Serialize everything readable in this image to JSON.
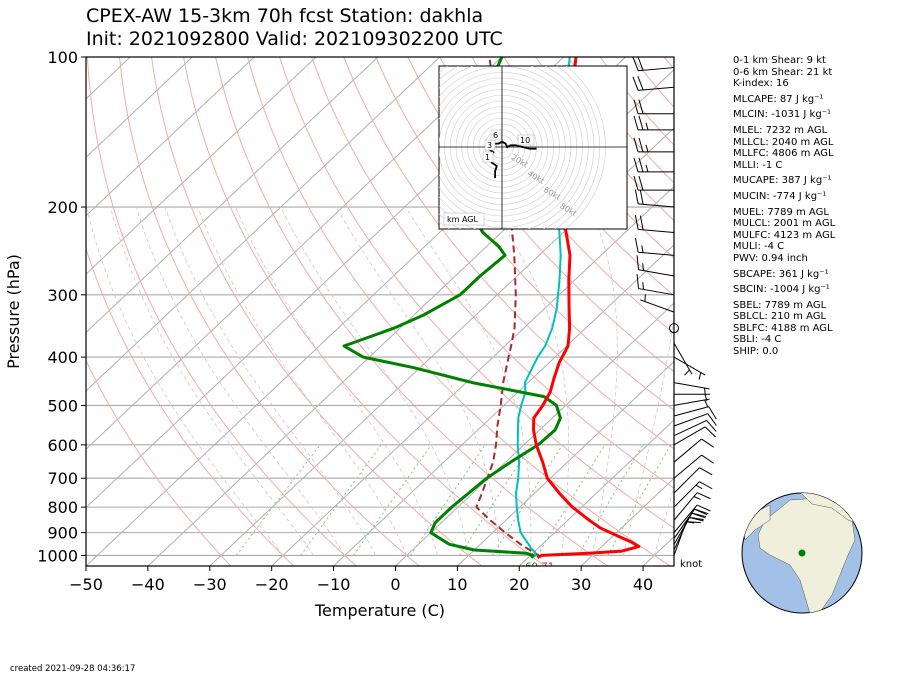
{
  "title_line1": "CPEX-AW 15-3km  70h fcst  Station: dakhla",
  "title_line2": "Init: 2021092800  Valid: 202109302200 UTC",
  "footer": "created 2021-09-28 04:36:17",
  "barb_unit": "knot",
  "stats": [
    {
      "text": "0-1 km Shear: 9 kt"
    },
    {
      "text": "0-6 km Shear: 21 kt"
    },
    {
      "text": "K-index: 16"
    },
    {
      "text": "MLCAPE: 87 J kg⁻¹",
      "gap": true
    },
    {
      "text": "MLCIN: -1031 J kg⁻¹",
      "gap": true
    },
    {
      "text": "MLEL: 7232 m AGL",
      "gap": true
    },
    {
      "text": "MLLCL: 2040 m AGL"
    },
    {
      "text": "MLLFC: 4806 m AGL"
    },
    {
      "text": "MLLI: -1 C"
    },
    {
      "text": "MUCAPE: 387 J kg⁻¹",
      "gap": true
    },
    {
      "text": "MUCIN: -774 J kg⁻¹",
      "gap": true
    },
    {
      "text": "MUEL: 7789 m AGL",
      "gap": true
    },
    {
      "text": "MULCL: 2001 m AGL"
    },
    {
      "text": "MULFC: 4123 m AGL"
    },
    {
      "text": "MULI: -4 C"
    },
    {
      "text": "PWV: 0.94 inch"
    },
    {
      "text": "SBCAPE: 361 J kg⁻¹",
      "gap": true
    },
    {
      "text": "SBCIN: -1004 J kg⁻¹",
      "gap": true
    },
    {
      "text": "SBEL: 7789 m AGL",
      "gap": true
    },
    {
      "text": "SBLCL: 210 m AGL"
    },
    {
      "text": "SBLFC: 4188 m AGL"
    },
    {
      "text": "SBLI: -4 C"
    },
    {
      "text": "SHIP: 0.0"
    }
  ],
  "colors": {
    "temperature": "#ff0000",
    "dewpoint": "#008000",
    "wetbulb": "#00bfbf",
    "parcel": "#a52a2a",
    "isotherm": "#b0b0b0",
    "dry_adiabat": "#f4aaaa",
    "moist_adiabat": "#c8c8c8",
    "mixing_ratio": "#7fc77f"
  },
  "chart_data": {
    "type": "skewt",
    "xlabel": "Temperature (C)",
    "ylabel": "Pressure (hPa)",
    "xlim": [
      -50,
      45
    ],
    "ylim": [
      1050,
      100
    ],
    "x_ticks": [
      "−50",
      "−40",
      "−30",
      "−20",
      "−10",
      "0",
      "10",
      "20",
      "30",
      "40"
    ],
    "x_tick_values": [
      -50,
      -40,
      -30,
      -20,
      -10,
      0,
      10,
      20,
      30,
      40
    ],
    "y_ticks": [
      "100",
      "200",
      "300",
      "400",
      "500",
      "600",
      "700",
      "800",
      "900",
      "1000"
    ],
    "y_tick_values": [
      100,
      200,
      300,
      400,
      500,
      600,
      700,
      800,
      900,
      1000
    ],
    "sfc_labels": {
      "dewpoint": "69",
      "temperature": "71"
    },
    "series": [
      {
        "key": "temperature",
        "points": [
          [
            1010,
            21.5
          ],
          [
            1000,
            21.8
          ],
          [
            990,
            29
          ],
          [
            980,
            34
          ],
          [
            960,
            36
          ],
          [
            940,
            34
          ],
          [
            920,
            31.5
          ],
          [
            880,
            26.5
          ],
          [
            850,
            23.5
          ],
          [
            800,
            18.5
          ],
          [
            750,
            14
          ],
          [
            700,
            9.5
          ],
          [
            650,
            6
          ],
          [
            600,
            2
          ],
          [
            560,
            -1
          ],
          [
            530,
            -3
          ],
          [
            500,
            -3.7
          ],
          [
            470,
            -4.8
          ],
          [
            440,
            -6.6
          ],
          [
            410,
            -8.4
          ],
          [
            380,
            -9.8
          ],
          [
            350,
            -12.6
          ],
          [
            320,
            -16
          ],
          [
            280,
            -21
          ],
          [
            250,
            -25
          ],
          [
            220,
            -30.5
          ],
          [
            200,
            -34
          ],
          [
            180,
            -38
          ],
          [
            160,
            -42
          ],
          [
            140,
            -46.5
          ],
          [
            120,
            -52
          ],
          [
            100,
            -58
          ]
        ]
      },
      {
        "key": "dewpoint",
        "points": [
          [
            1010,
            20.5
          ],
          [
            1000,
            20.4
          ],
          [
            990,
            19
          ],
          [
            975,
            10
          ],
          [
            950,
            5
          ],
          [
            930,
            3
          ],
          [
            900,
            0
          ],
          [
            860,
            -1
          ],
          [
            800,
            -1
          ],
          [
            700,
            -0.3
          ],
          [
            650,
            0.8
          ],
          [
            600,
            2.3
          ],
          [
            560,
            2.5
          ],
          [
            530,
            1.3
          ],
          [
            500,
            -1.5
          ],
          [
            480,
            -5
          ],
          [
            450,
            -19
          ],
          [
            420,
            -31
          ],
          [
            400,
            -41
          ],
          [
            380,
            -46
          ],
          [
            350,
            -41
          ],
          [
            330,
            -38.5
          ],
          [
            300,
            -36
          ],
          [
            275,
            -36
          ],
          [
            250,
            -35.5
          ],
          [
            240,
            -38
          ],
          [
            225,
            -43
          ],
          [
            210,
            -47
          ],
          [
            200,
            -50
          ],
          [
            180,
            -56
          ],
          [
            160,
            -60
          ],
          [
            140,
            -63
          ],
          [
            120,
            -66
          ],
          [
            100,
            -70
          ]
        ]
      },
      {
        "key": "wetbulb",
        "points": [
          [
            1010,
            20.7
          ],
          [
            1000,
            20.8
          ],
          [
            985,
            20.2
          ],
          [
            970,
            19
          ],
          [
            950,
            17.8
          ],
          [
            900,
            14.5
          ],
          [
            850,
            12
          ],
          [
            800,
            9.5
          ],
          [
            750,
            7
          ],
          [
            700,
            4.8
          ],
          [
            650,
            2.2
          ],
          [
            600,
            -1
          ],
          [
            560,
            -3.5
          ],
          [
            530,
            -5.5
          ],
          [
            500,
            -7.2
          ],
          [
            470,
            -8.8
          ],
          [
            450,
            -10.5
          ],
          [
            430,
            -11.4
          ],
          [
            400,
            -12.8
          ],
          [
            380,
            -13.5
          ],
          [
            350,
            -15.4
          ],
          [
            320,
            -18
          ],
          [
            280,
            -22.5
          ],
          [
            250,
            -26.5
          ],
          [
            220,
            -31.5
          ],
          [
            200,
            -35
          ],
          [
            180,
            -39
          ],
          [
            160,
            -43
          ],
          [
            140,
            -47.5
          ],
          [
            120,
            -53
          ],
          [
            100,
            -59
          ]
        ]
      },
      {
        "key": "parcel",
        "points": [
          [
            1010,
            21.5
          ],
          [
            1000,
            21.3
          ],
          [
            950,
            16.5
          ],
          [
            900,
            12
          ],
          [
            850,
            7.5
          ],
          [
            800,
            3
          ],
          [
            750,
            1.5
          ],
          [
            700,
            -0.2
          ],
          [
            650,
            -2
          ],
          [
            600,
            -4.5
          ],
          [
            550,
            -7.5
          ],
          [
            500,
            -10.5
          ],
          [
            450,
            -14
          ],
          [
            400,
            -17.5
          ],
          [
            380,
            -19
          ],
          [
            350,
            -21.5
          ],
          [
            300,
            -27
          ],
          [
            250,
            -34
          ],
          [
            200,
            -43
          ],
          [
            150,
            -55
          ],
          [
            100,
            -72
          ]
        ]
      }
    ],
    "wind_barbs": [
      {
        "p": 1000,
        "dir": 20,
        "spd": 10
      },
      {
        "p": 975,
        "dir": 25,
        "spd": 15
      },
      {
        "p": 950,
        "dir": 30,
        "spd": 20
      },
      {
        "p": 925,
        "dir": 35,
        "spd": 20
      },
      {
        "p": 900,
        "dir": 40,
        "spd": 20
      },
      {
        "p": 850,
        "dir": 40,
        "spd": 15
      },
      {
        "p": 800,
        "dir": 45,
        "spd": 15
      },
      {
        "p": 750,
        "dir": 45,
        "spd": 10
      },
      {
        "p": 700,
        "dir": 50,
        "spd": 10
      },
      {
        "p": 650,
        "dir": 50,
        "spd": 10
      },
      {
        "p": 600,
        "dir": 60,
        "spd": 10
      },
      {
        "p": 575,
        "dir": 65,
        "spd": 10
      },
      {
        "p": 550,
        "dir": 70,
        "spd": 10
      },
      {
        "p": 525,
        "dir": 75,
        "spd": 10
      },
      {
        "p": 500,
        "dir": 80,
        "spd": 5
      },
      {
        "p": 475,
        "dir": 90,
        "spd": 5
      },
      {
        "p": 450,
        "dir": 100,
        "spd": 5
      },
      {
        "p": 400,
        "dir": 120,
        "spd": 5
      },
      {
        "p": 375,
        "dir": 150,
        "spd": 5
      },
      {
        "p": 350,
        "dir": 0,
        "spd": 0
      },
      {
        "p": 325,
        "dir": 290,
        "spd": 5
      },
      {
        "p": 300,
        "dir": 280,
        "spd": 15
      },
      {
        "p": 275,
        "dir": 280,
        "spd": 15
      },
      {
        "p": 250,
        "dir": 275,
        "spd": 15
      },
      {
        "p": 225,
        "dir": 275,
        "spd": 20
      },
      {
        "p": 200,
        "dir": 275,
        "spd": 20
      },
      {
        "p": 185,
        "dir": 270,
        "spd": 20
      },
      {
        "p": 170,
        "dir": 270,
        "spd": 25
      },
      {
        "p": 155,
        "dir": 270,
        "spd": 25
      },
      {
        "p": 140,
        "dir": 270,
        "spd": 25
      },
      {
        "p": 130,
        "dir": 270,
        "spd": 20
      },
      {
        "p": 115,
        "dir": 265,
        "spd": 20
      },
      {
        "p": 105,
        "dir": 265,
        "spd": 20
      }
    ],
    "hodograph": {
      "ring_labels": [
        "20kt",
        "40kt",
        "60kt",
        "80kt"
      ],
      "ring_values": [
        20,
        40,
        60,
        80
      ],
      "height_labels": [
        "1",
        "3",
        "6",
        "10"
      ],
      "legend": "km AGL",
      "points": [
        [
          -4,
          -18
        ],
        [
          -4,
          -14
        ],
        [
          -3,
          -11
        ],
        [
          -6,
          -9
        ],
        [
          -7,
          -5
        ],
        [
          -5,
          -3
        ],
        [
          -8,
          -1
        ],
        [
          -6,
          1
        ],
        [
          -4,
          2
        ],
        [
          -2,
          2
        ],
        [
          0,
          3
        ],
        [
          2,
          2
        ],
        [
          3,
          0
        ],
        [
          5,
          1
        ],
        [
          8,
          1
        ],
        [
          12,
          0
        ],
        [
          16,
          -1
        ],
        [
          20,
          -1
        ]
      ]
    },
    "globe_marker": {
      "lat": 23.7,
      "lon": -15.9
    }
  }
}
